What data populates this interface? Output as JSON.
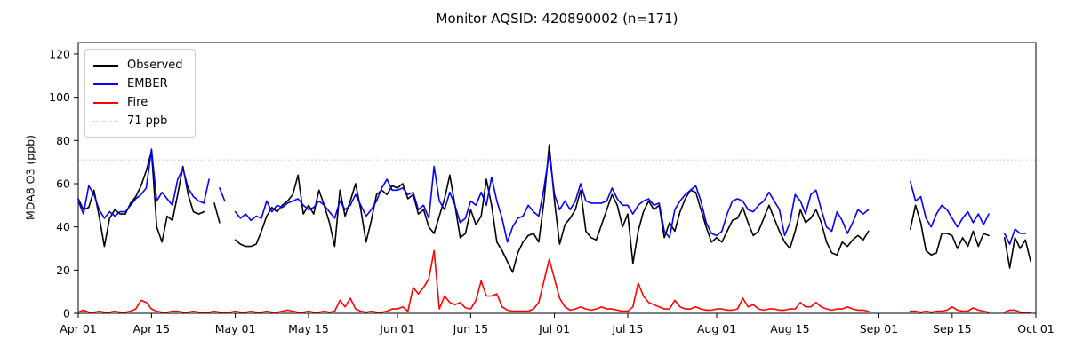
{
  "chart": {
    "title": "Monitor AQSID: 420890002 (n=171)"
  },
  "legend": {
    "items": [
      {
        "label": "Observed",
        "color": "#000000",
        "style": "solid"
      },
      {
        "label": "EMBER",
        "color": "#0000ff",
        "style": "solid"
      },
      {
        "label": "Fire",
        "color": "#ff0000",
        "style": "solid"
      },
      {
        "label": "71 ppb",
        "color": "#c8c8c8",
        "style": "dotted"
      }
    ]
  },
  "chart_data": {
    "type": "line",
    "title": "Monitor AQSID: 420890002 (n=171)",
    "xlabel": "",
    "ylabel": "MDA8 O3 (ppb)",
    "ylim": [
      0,
      125
    ],
    "yticks": [
      0,
      20,
      40,
      60,
      80,
      100,
      120
    ],
    "yscale_max": 120,
    "grid": false,
    "legend_position": "upper left",
    "x_unit": "day",
    "x_start_label": "Apr 01",
    "x_end_label": "Oct 01",
    "days_total": 183,
    "xticks": [
      {
        "label": "Apr 01",
        "day": 0
      },
      {
        "label": "Apr 15",
        "day": 14
      },
      {
        "label": "May 01",
        "day": 30
      },
      {
        "label": "May 15",
        "day": 44
      },
      {
        "label": "Jun 01",
        "day": 61
      },
      {
        "label": "Jun 15",
        "day": 75
      },
      {
        "label": "Jul 01",
        "day": 91
      },
      {
        "label": "Jul 15",
        "day": 105
      },
      {
        "label": "Aug 01",
        "day": 122
      },
      {
        "label": "Aug 15",
        "day": 136
      },
      {
        "label": "Sep 01",
        "day": 153
      },
      {
        "label": "Sep 15",
        "day": 167
      },
      {
        "label": "Oct 01",
        "day": 183
      }
    ],
    "reference_line": {
      "label": "71 ppb",
      "value": 71,
      "color": "#c8c8c8",
      "style": "dotted"
    },
    "series": [
      {
        "name": "Observed",
        "color": "#000000",
        "values": [
          53,
          48,
          49,
          57,
          45,
          31,
          44,
          48,
          46,
          46,
          51,
          54,
          59,
          66,
          75,
          40,
          33,
          45,
          43,
          55,
          68,
          55,
          47,
          46,
          47,
          null,
          51,
          42,
          null,
          null,
          34,
          32,
          31,
          31,
          32,
          38,
          45,
          49,
          47,
          50,
          52,
          55,
          64,
          46,
          50,
          46,
          57,
          50,
          42,
          31,
          57,
          45,
          52,
          60,
          48,
          33,
          43,
          55,
          57,
          55,
          59,
          58,
          60,
          53,
          55,
          46,
          48,
          40,
          37,
          45,
          53,
          64,
          50,
          35,
          37,
          48,
          41,
          45,
          62,
          50,
          33,
          29,
          24,
          19,
          28,
          33,
          36,
          37,
          33,
          52,
          78,
          52,
          32,
          41,
          44,
          48,
          57,
          38,
          35,
          34,
          41,
          48,
          55,
          50,
          40,
          46,
          23,
          38,
          47,
          52,
          48,
          50,
          35,
          42,
          38,
          47,
          53,
          57,
          56,
          48,
          40,
          33,
          35,
          33,
          38,
          43,
          44,
          49,
          42,
          36,
          38,
          44,
          50,
          44,
          38,
          33,
          30,
          38,
          48,
          42,
          44,
          48,
          42,
          33,
          28,
          27,
          33,
          31,
          34,
          36,
          34,
          38,
          null,
          null,
          null,
          null,
          null,
          null,
          null,
          39,
          50,
          42,
          29,
          27,
          28,
          37,
          37,
          36,
          30,
          35,
          31,
          38,
          31,
          37,
          36,
          null,
          null,
          35,
          21,
          35,
          30,
          34,
          24
        ]
      },
      {
        "name": "EMBER",
        "color": "#0000ff",
        "values": [
          52,
          46,
          59,
          55,
          48,
          44,
          47,
          45,
          47,
          47,
          50,
          53,
          55,
          58,
          76,
          52,
          56,
          53,
          50,
          62,
          67,
          58,
          54,
          52,
          51,
          62,
          null,
          58,
          52,
          null,
          47,
          44,
          46,
          43,
          45,
          44,
          52,
          47,
          50,
          49,
          51,
          52,
          53,
          50,
          48,
          49,
          52,
          50,
          47,
          44,
          52,
          48,
          50,
          55,
          50,
          45,
          48,
          52,
          58,
          62,
          57,
          57,
          58,
          55,
          56,
          48,
          50,
          44,
          68,
          52,
          48,
          56,
          50,
          42,
          44,
          52,
          50,
          56,
          50,
          63,
          52,
          44,
          33,
          40,
          44,
          45,
          50,
          47,
          45,
          58,
          74,
          55,
          48,
          52,
          48,
          52,
          60,
          52,
          51,
          51,
          51,
          52,
          58,
          53,
          50,
          50,
          46,
          50,
          52,
          53,
          50,
          51,
          38,
          35,
          48,
          52,
          55,
          57,
          59,
          52,
          42,
          37,
          36,
          38,
          46,
          52,
          53,
          52,
          48,
          47,
          50,
          52,
          56,
          52,
          48,
          36,
          42,
          55,
          52,
          46,
          55,
          57,
          48,
          40,
          38,
          47,
          43,
          37,
          42,
          48,
          46,
          48,
          null,
          null,
          null,
          null,
          null,
          null,
          null,
          61,
          52,
          54,
          44,
          40,
          46,
          50,
          48,
          44,
          40,
          44,
          47,
          42,
          46,
          41,
          46,
          null,
          null,
          37,
          32,
          39,
          37,
          37,
          null
        ]
      },
      {
        "name": "Fire",
        "color": "#ff0000",
        "values": [
          0.5,
          1.5,
          0.5,
          0.5,
          1,
          0.5,
          0.5,
          1,
          0.5,
          0.5,
          1,
          2,
          6,
          5,
          2,
          1,
          0.5,
          0.5,
          1,
          1,
          0.5,
          0.5,
          1,
          0.5,
          0.5,
          0.5,
          1,
          0.5,
          0.5,
          0.5,
          1,
          0.5,
          0.5,
          1,
          0.5,
          0.5,
          1,
          0.5,
          0.5,
          1,
          1.5,
          1,
          0.5,
          0.5,
          1,
          0.5,
          0.5,
          1,
          0.5,
          1,
          6,
          3,
          7,
          2,
          1,
          0.5,
          1,
          0.5,
          0.5,
          1,
          2,
          2,
          3,
          1,
          12,
          9,
          12,
          16,
          29,
          2,
          8,
          5,
          4,
          5,
          2.5,
          2,
          6,
          15,
          8,
          8,
          9,
          3,
          1.5,
          1,
          1,
          1,
          1,
          2,
          5,
          15,
          25,
          16,
          7,
          3,
          1.5,
          2,
          3,
          2,
          1.5,
          2,
          3,
          2,
          2,
          1.5,
          1,
          1,
          3,
          14,
          8,
          5,
          4,
          3,
          2,
          2,
          6,
          3,
          2,
          2,
          3,
          2,
          1.5,
          1.5,
          2,
          2,
          1.5,
          1.5,
          2,
          7,
          3,
          4,
          2,
          1.5,
          2,
          2,
          1.5,
          1.5,
          2,
          2,
          5,
          3,
          3,
          5,
          3,
          2,
          1.5,
          2,
          2,
          3,
          2,
          1.5,
          1.5,
          1,
          null,
          null,
          null,
          null,
          null,
          null,
          null,
          1,
          1,
          0.5,
          1,
          0.5,
          1,
          1,
          1.5,
          3,
          1.5,
          1,
          1,
          2.5,
          1.5,
          1,
          0.5,
          null,
          null,
          0.5,
          1.5,
          1.5,
          0.5,
          0.5,
          0.5
        ]
      }
    ]
  }
}
